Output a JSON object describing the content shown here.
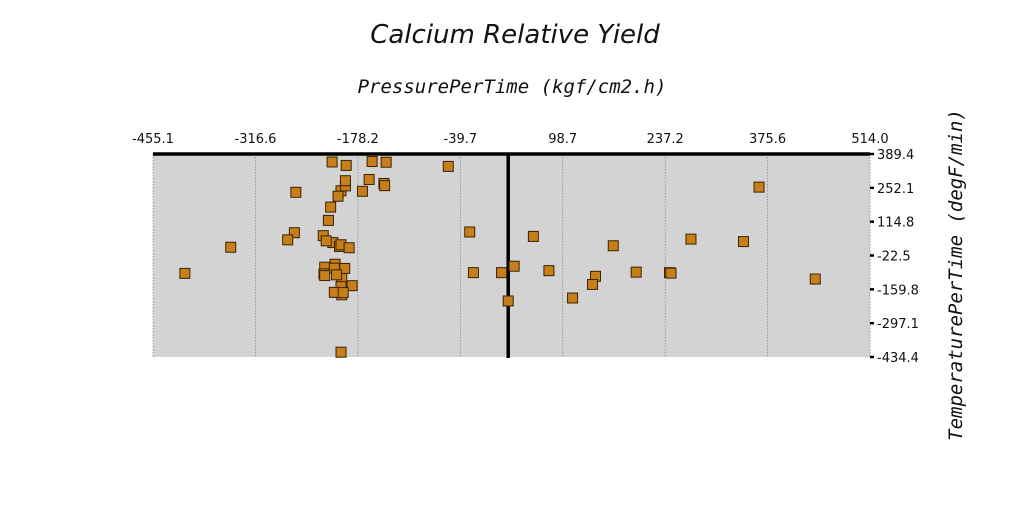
{
  "chart_data": {
    "type": "scatter",
    "title": "Calcium Relative Yield",
    "xlabel": "PressurePerTime (kgf/cm2.h)",
    "ylabel": "TemperaturePerTime (degF/min)",
    "xlim": [
      -455.1,
      514.0
    ],
    "ylim": [
      -434.4,
      389.4
    ],
    "x_ticks": [
      "-455.1",
      "-316.6",
      "-178.2",
      "-39.7",
      "98.7",
      "237.2",
      "375.6",
      "514.0"
    ],
    "y_ticks": [
      "389.4",
      "252.1",
      "114.8",
      "-22.5",
      "-159.8",
      "-297.1",
      "-434.4"
    ],
    "x_axis_position": "top",
    "y_axis_position": "right",
    "vertical_line_x": 25,
    "grid": "vertical",
    "background": "#d3d3d3",
    "marker_color": "#c77f1a",
    "marker_edge_color": "#3a2200",
    "marker_shape": "square",
    "points": [
      {
        "x": -213,
        "y": 357
      },
      {
        "x": -194,
        "y": 343
      },
      {
        "x": -159,
        "y": 359
      },
      {
        "x": -140,
        "y": 356
      },
      {
        "x": -56,
        "y": 339
      },
      {
        "x": -262,
        "y": 234
      },
      {
        "x": -201,
        "y": 240
      },
      {
        "x": -195,
        "y": 260
      },
      {
        "x": -195,
        "y": 281
      },
      {
        "x": -172,
        "y": 238
      },
      {
        "x": -163,
        "y": 286
      },
      {
        "x": -143,
        "y": 270
      },
      {
        "x": -142,
        "y": 261
      },
      {
        "x": -205,
        "y": 218
      },
      {
        "x": -215,
        "y": 174
      },
      {
        "x": -218,
        "y": 120
      },
      {
        "x": -264,
        "y": 70
      },
      {
        "x": -273,
        "y": 41
      },
      {
        "x": -225,
        "y": 58
      },
      {
        "x": -212,
        "y": 30
      },
      {
        "x": -203,
        "y": 14
      },
      {
        "x": -201,
        "y": 21
      },
      {
        "x": -190,
        "y": 9
      },
      {
        "x": -221,
        "y": 37
      },
      {
        "x": -350,
        "y": 11
      },
      {
        "x": -412,
        "y": -95
      },
      {
        "x": -209,
        "y": -58
      },
      {
        "x": -223,
        "y": -70
      },
      {
        "x": -204,
        "y": -77
      },
      {
        "x": -210,
        "y": -74
      },
      {
        "x": -196,
        "y": -75
      },
      {
        "x": -200,
        "y": -116
      },
      {
        "x": -224,
        "y": -97
      },
      {
        "x": -223,
        "y": -104
      },
      {
        "x": -207,
        "y": -101
      },
      {
        "x": -201,
        "y": -149
      },
      {
        "x": -200,
        "y": -182
      },
      {
        "x": -186,
        "y": -145
      },
      {
        "x": -210,
        "y": -172
      },
      {
        "x": -198,
        "y": -173
      },
      {
        "x": -201,
        "y": -415
      },
      {
        "x": -27,
        "y": 73
      },
      {
        "x": 59,
        "y": 55
      },
      {
        "x": 33,
        "y": -66
      },
      {
        "x": -22,
        "y": -92
      },
      {
        "x": 16,
        "y": -92
      },
      {
        "x": 25,
        "y": -207
      },
      {
        "x": 80,
        "y": -84
      },
      {
        "x": 112,
        "y": -195
      },
      {
        "x": 143,
        "y": -107
      },
      {
        "x": 139,
        "y": -140
      },
      {
        "x": 167,
        "y": 17
      },
      {
        "x": 198,
        "y": -90
      },
      {
        "x": 243,
        "y": -92
      },
      {
        "x": 245,
        "y": -94
      },
      {
        "x": 272,
        "y": 44
      },
      {
        "x": 343,
        "y": 34
      },
      {
        "x": 364,
        "y": 255
      },
      {
        "x": 440,
        "y": -118
      }
    ]
  }
}
